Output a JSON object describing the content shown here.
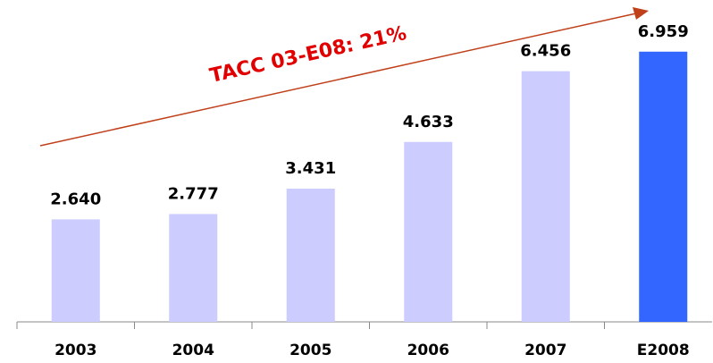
{
  "chart_data": {
    "type": "bar",
    "categories": [
      "2003",
      "2004",
      "2005",
      "2006",
      "2007",
      "E2008"
    ],
    "values": [
      2.64,
      2.777,
      3.431,
      4.633,
      6.456,
      6.959
    ],
    "value_labels": [
      "2.640",
      "2.777",
      "3.431",
      "4.633",
      "6.456",
      "6.959"
    ],
    "colors": [
      "#ccccff",
      "#ccccff",
      "#ccccff",
      "#ccccff",
      "#ccccff",
      "#3366ff"
    ],
    "ylim": [
      0,
      7
    ],
    "annotation": "TACC 03-E08: 21%"
  }
}
